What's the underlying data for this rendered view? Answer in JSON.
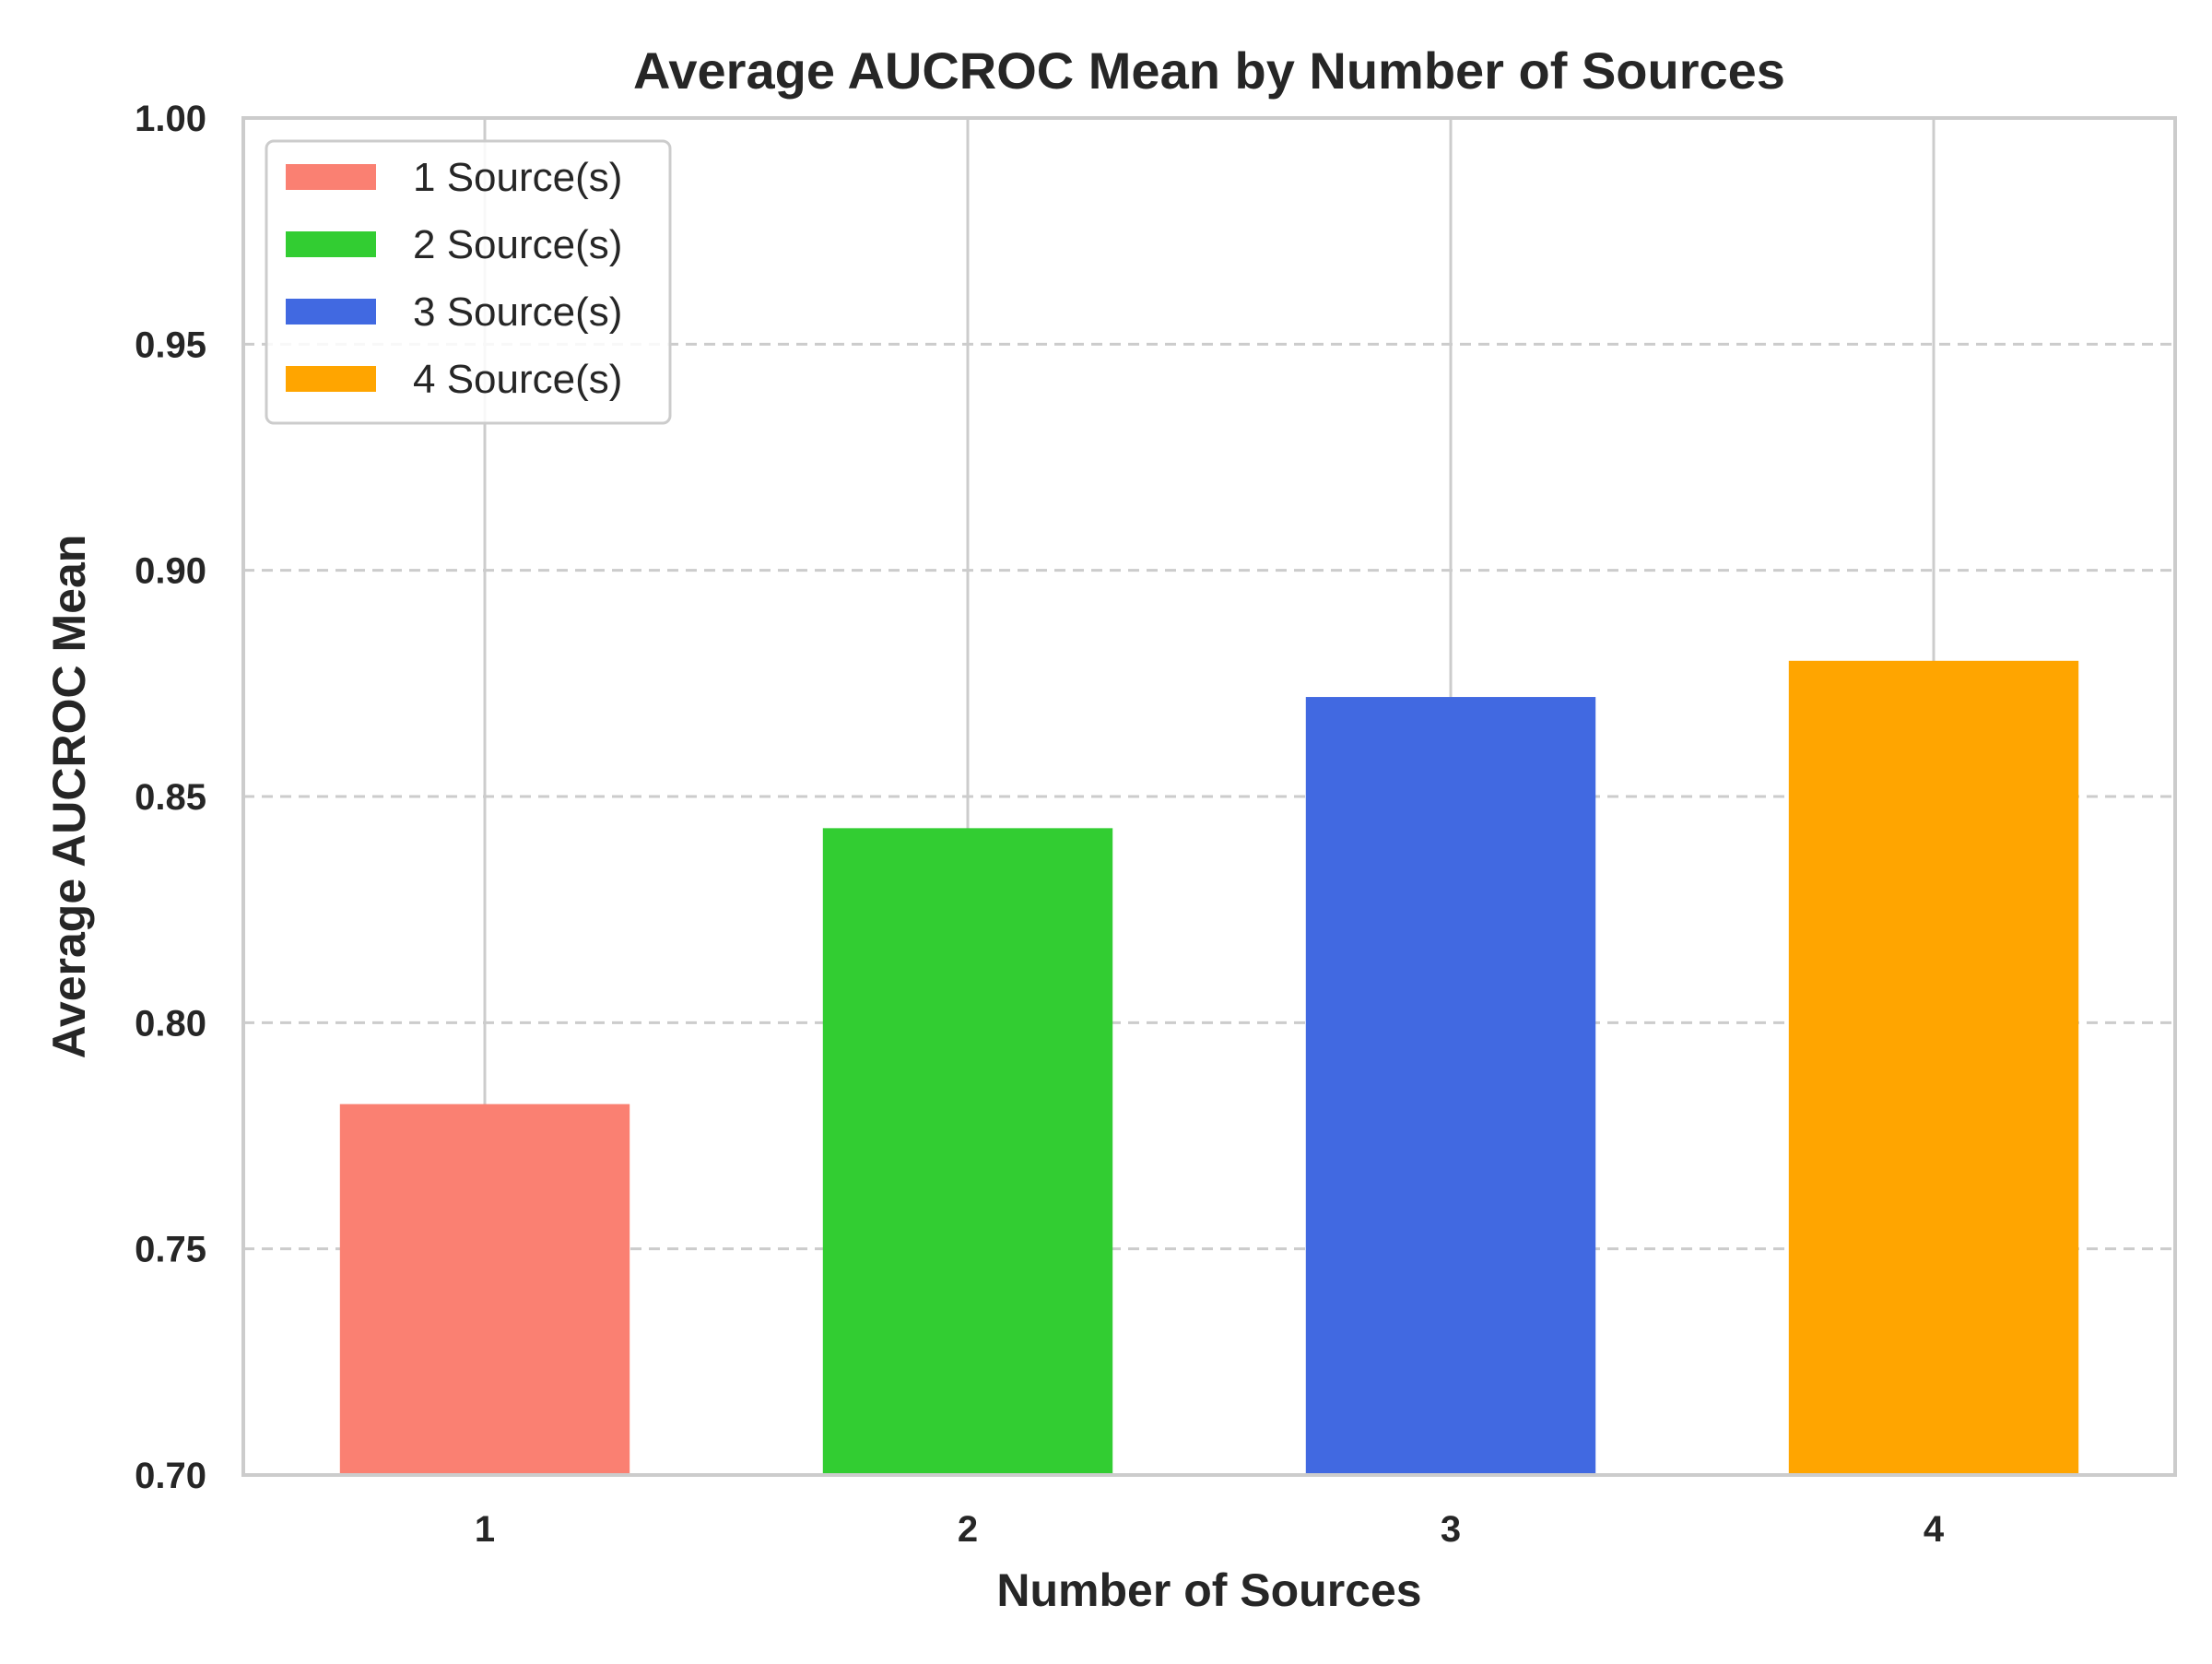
{
  "chart_data": {
    "type": "bar",
    "title": "Average AUCROC Mean by Number of Sources",
    "xlabel": "Number of Sources",
    "ylabel": "Average AUCROC Mean",
    "categories": [
      "1",
      "2",
      "3",
      "4"
    ],
    "values": [
      0.782,
      0.843,
      0.872,
      0.88
    ],
    "colors": [
      "#fa8072",
      "#32cd32",
      "#4169e1",
      "#ffa500"
    ],
    "ylim": [
      0.7,
      1.0
    ],
    "yticks": [
      0.7,
      0.75,
      0.8,
      0.85,
      0.9,
      0.95,
      1.0
    ],
    "ytick_labels": [
      "0.70",
      "0.75",
      "0.80",
      "0.85",
      "0.90",
      "0.95",
      "1.00"
    ],
    "grid": {
      "vertical": "solid",
      "horizontal": "dashed",
      "color": "#cccccc"
    },
    "legend": {
      "placement": "top-left",
      "entries": [
        "1 Source(s)",
        "2 Source(s)",
        "3 Source(s)",
        "4 Source(s)"
      ]
    }
  }
}
